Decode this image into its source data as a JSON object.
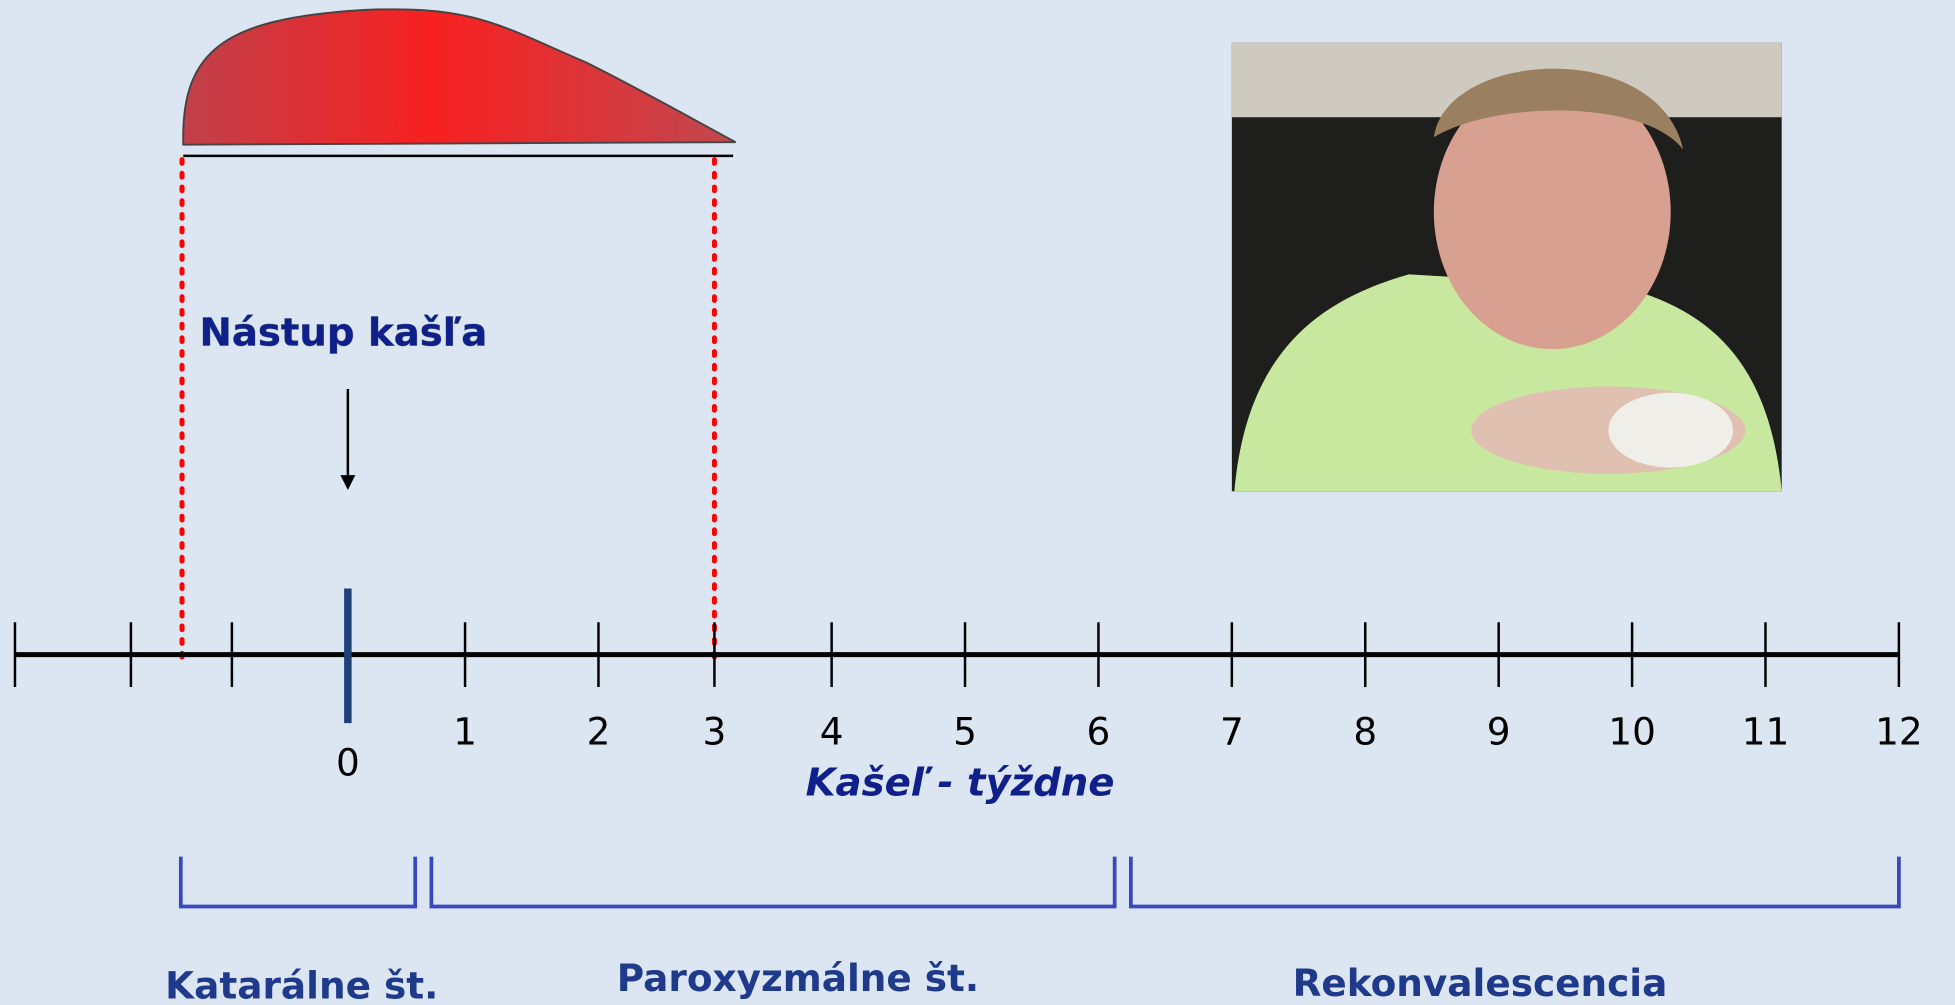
{
  "onset_label": "Nástup kašľa",
  "axis": {
    "title": "Kašeľ - týždne",
    "ticks": [
      0,
      1,
      2,
      3,
      4,
      5,
      6,
      7,
      8,
      9,
      10,
      11,
      12
    ]
  },
  "phases": [
    "Katarálne št.",
    "Paroxyzmálne št.",
    "Rekonvalescencia"
  ]
}
